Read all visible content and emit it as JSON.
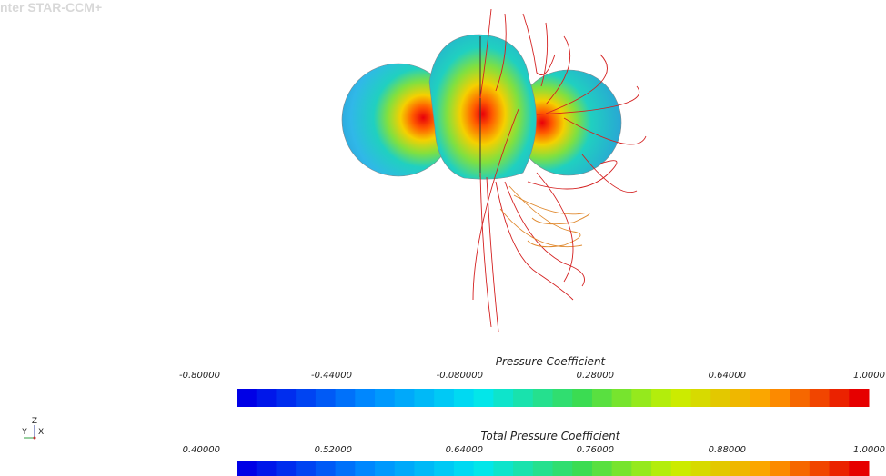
{
  "header": {
    "title": "nter STAR-CCM+"
  },
  "triad": {
    "z": "Z",
    "y": "Y",
    "x": "X"
  },
  "colorbars": [
    {
      "title": "Pressure Coefficient",
      "ticks": [
        "-0.80000",
        "-0.44000",
        "-0.080000",
        "0.28000",
        "0.64000",
        "1.0000"
      ]
    },
    {
      "title": "Total Pressure Coefficient",
      "ticks": [
        "0.40000",
        "0.52000",
        "0.64000",
        "0.76000",
        "0.88000",
        "1.0000"
      ]
    }
  ]
}
